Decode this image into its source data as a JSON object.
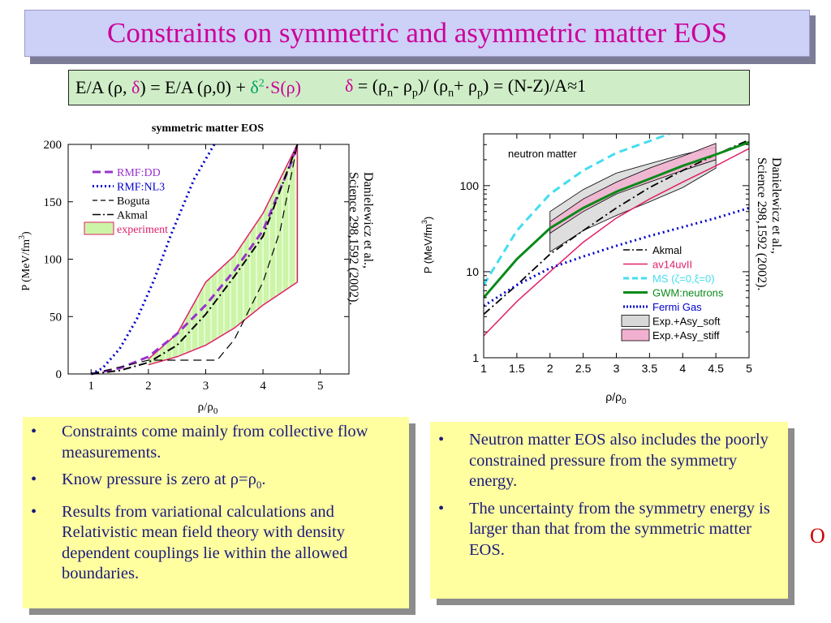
{
  "slide": {
    "title": "Constraints on symmetric and asymmetric matter EOS",
    "formula": {
      "left_a": "E/A (ρ, ",
      "left_delta": "δ",
      "left_b": ") = E/A (ρ,0) + ",
      "left_d2": "δ",
      "left_sup": "2",
      "left_s": "·S(ρ)",
      "right_delta": "δ",
      "right_a": " = (ρ",
      "right_n": "n",
      "right_b": "- ρ",
      "right_p": "p",
      "right_c": ")/ (ρ",
      "right_n2": "n",
      "right_d": "+ ρ",
      "right_p2": "p",
      "right_e": ") = (N-Z)/A≈1"
    },
    "left_bullets": [
      "Constraints come mainly from collective flow measurements.",
      "Know pressure is zero at ρ=ρ0.",
      "Results from variational calculations and Relativistic mean field theory with density dependent couplings lie within the allowed boundaries."
    ],
    "right_bullets": [
      "Neutron matter EOS also includes the poorly constrained pressure from the symmetry energy.",
      "The uncertainty from the symmetry energy is larger than that from the symmetric matter EOS."
    ],
    "bullet_char": "•",
    "side_char": "O",
    "ghost_text": "allowed boundaries."
  },
  "chart_data": [
    {
      "type": "line",
      "title": "symmetric matter EOS",
      "xlabel": "ρ/ρ0",
      "ylabel": "P (MeV/fm3)",
      "xlim": [
        0.6,
        5.5
      ],
      "ylim": [
        0,
        200
      ],
      "xticks": [
        1,
        2,
        3,
        4,
        5
      ],
      "yticks": [
        0,
        50,
        100,
        150,
        200
      ],
      "citation": [
        "Danielewicz et al.,",
        "Science 298,1592 (2002)."
      ],
      "legend": [
        "RMF:DD",
        "RMF:NL3",
        "Boguta",
        "Akmal",
        "experiment"
      ],
      "colors": {
        "rmfdd": "#9933cc",
        "nl3": "#0000cc",
        "line": "#000000",
        "exp_fill": "#ccf5a8",
        "exp_edge": "#e0206a"
      },
      "experiment_region": {
        "upper": [
          [
            2.0,
            13
          ],
          [
            2.5,
            35
          ],
          [
            3.0,
            80
          ],
          [
            3.5,
            103
          ],
          [
            4.0,
            140
          ],
          [
            4.6,
            200
          ]
        ],
        "lower": [
          [
            2.0,
            8
          ],
          [
            2.5,
            15
          ],
          [
            3.0,
            25
          ],
          [
            3.5,
            40
          ],
          [
            4.0,
            60
          ],
          [
            4.6,
            80
          ]
        ]
      },
      "series": [
        {
          "name": "RMF:DD",
          "style": "dash",
          "points": [
            [
              1.0,
              0
            ],
            [
              1.5,
              5
            ],
            [
              2.0,
              15
            ],
            [
              2.5,
              35
            ],
            [
              3.0,
              60
            ],
            [
              3.5,
              90
            ],
            [
              4.0,
              125
            ],
            [
              4.5,
              185
            ],
            [
              4.6,
              200
            ]
          ]
        },
        {
          "name": "RMF:NL3",
          "style": "dot",
          "points": [
            [
              1.0,
              0
            ],
            [
              1.2,
              5
            ],
            [
              1.5,
              22
            ],
            [
              1.8,
              48
            ],
            [
              2.1,
              82
            ],
            [
              2.4,
              122
            ],
            [
              2.8,
              170
            ],
            [
              3.15,
              200
            ]
          ]
        },
        {
          "name": "Boguta",
          "style": "dash",
          "points": [
            [
              1.0,
              0
            ],
            [
              2.0,
              12
            ],
            [
              3.2,
              12
            ],
            [
              3.5,
              30
            ],
            [
              4.0,
              80
            ],
            [
              4.3,
              125
            ],
            [
              4.6,
              200
            ]
          ]
        },
        {
          "name": "Akmal",
          "style": "dashdot",
          "points": [
            [
              1.0,
              0
            ],
            [
              1.5,
              3
            ],
            [
              2.0,
              10
            ],
            [
              2.5,
              25
            ],
            [
              3.0,
              52
            ],
            [
              3.5,
              85
            ],
            [
              4.0,
              120
            ],
            [
              4.6,
              200
            ]
          ]
        }
      ]
    },
    {
      "type": "line",
      "annotation": "neutron matter",
      "xlabel": "ρ/ρ0",
      "ylabel": "P (MeV/fm3)",
      "xlim": [
        1,
        5
      ],
      "ylim": [
        1,
        400
      ],
      "yscale": "log",
      "xticks": [
        1,
        1.5,
        2,
        2.5,
        3,
        3.5,
        4,
        4.5,
        5
      ],
      "xticklabels": [
        "1",
        "1.5",
        "2",
        "2.5",
        "3",
        "3.5",
        "4",
        "4.5",
        "5"
      ],
      "yticks": [
        1,
        10,
        100
      ],
      "citation": [
        "Danielewicz et al.,",
        "Science 298,1592 (2002)."
      ],
      "legend": [
        "Akmal",
        "av14uvII",
        "MS (ζ=0,ξ=0)",
        "GWM:neutrons",
        "Fermi Gas",
        "Exp.+Asy_soft",
        "Exp.+Asy_stiff"
      ],
      "colors": {
        "akmal": "#000000",
        "av14": "#e0206a",
        "ms": "#44ddf0",
        "gwm": "#0a8a1a",
        "fermi": "#0000cc",
        "soft": "#d8d8d8",
        "stiff": "#f2b0d0"
      },
      "bands": [
        {
          "name": "Exp.+Asy_soft",
          "upper": [
            [
              2.0,
              50
            ],
            [
              2.5,
              90
            ],
            [
              3.0,
              140
            ],
            [
              3.5,
              180
            ],
            [
              4.0,
              230
            ],
            [
              4.5,
              280
            ]
          ],
          "lower": [
            [
              2.0,
              17
            ],
            [
              2.5,
              30
            ],
            [
              3.0,
              45
            ],
            [
              3.5,
              65
            ],
            [
              4.0,
              95
            ],
            [
              4.5,
              160
            ]
          ]
        },
        {
          "name": "Exp.+Asy_stiff",
          "upper": [
            [
              2.0,
              38
            ],
            [
              2.5,
              70
            ],
            [
              3.0,
              110
            ],
            [
              3.5,
              160
            ],
            [
              4.0,
              220
            ],
            [
              4.5,
              310
            ]
          ],
          "lower": [
            [
              2.0,
              28
            ],
            [
              2.5,
              50
            ],
            [
              3.0,
              80
            ],
            [
              3.5,
              110
            ],
            [
              4.0,
              150
            ],
            [
              4.5,
              200
            ]
          ]
        }
      ],
      "series": [
        {
          "name": "Akmal",
          "style": "dashdot",
          "points": [
            [
              1.0,
              3.2
            ],
            [
              1.5,
              7
            ],
            [
              2.0,
              16
            ],
            [
              2.5,
              30
            ],
            [
              3.0,
              55
            ],
            [
              3.5,
              95
            ],
            [
              4.0,
              150
            ],
            [
              4.5,
              230
            ],
            [
              5.0,
              340
            ]
          ]
        },
        {
          "name": "av14uvII",
          "style": "solid",
          "points": [
            [
              1.0,
              1.8
            ],
            [
              1.5,
              4.5
            ],
            [
              2.0,
              10
            ],
            [
              2.5,
              22
            ],
            [
              3.0,
              42
            ],
            [
              3.5,
              70
            ],
            [
              4.0,
              110
            ],
            [
              4.5,
              170
            ],
            [
              5.0,
              270
            ]
          ]
        },
        {
          "name": "MS (ζ=0,ξ=0)",
          "style": "dash",
          "points": [
            [
              1.0,
              7
            ],
            [
              1.5,
              30
            ],
            [
              2.0,
              80
            ],
            [
              2.5,
              150
            ],
            [
              3.0,
              240
            ],
            [
              3.5,
              330
            ],
            [
              3.8,
              400
            ]
          ]
        },
        {
          "name": "GWM:neutrons",
          "style": "solid-thick",
          "points": [
            [
              1.0,
              5
            ],
            [
              1.5,
              14
            ],
            [
              2.0,
              32
            ],
            [
              2.5,
              55
            ],
            [
              3.0,
              85
            ],
            [
              3.5,
              120
            ],
            [
              4.0,
              170
            ],
            [
              4.5,
              230
            ],
            [
              5.0,
              320
            ]
          ]
        },
        {
          "name": "Fermi Gas",
          "style": "dot",
          "points": [
            [
              1.0,
              4
            ],
            [
              1.5,
              7
            ],
            [
              2.0,
              11
            ],
            [
              2.5,
              15
            ],
            [
              3.0,
              20
            ],
            [
              3.5,
              26
            ],
            [
              4.0,
              33
            ],
            [
              4.5,
              42
            ],
            [
              5.0,
              55
            ]
          ]
        }
      ]
    }
  ]
}
